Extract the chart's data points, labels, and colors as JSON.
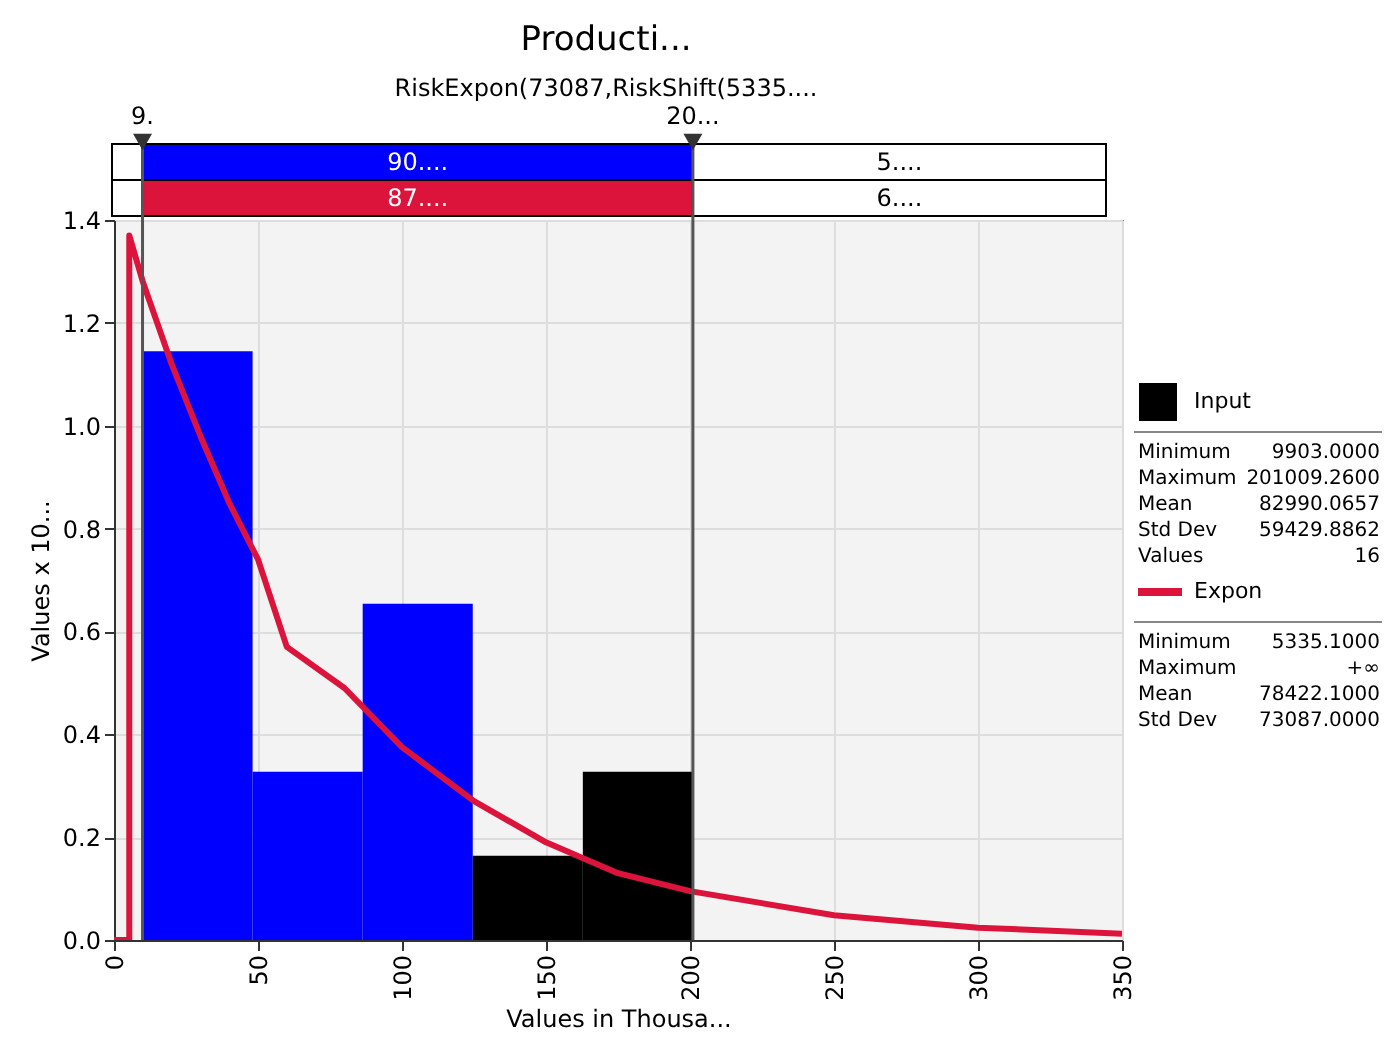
{
  "chart_data": {
    "type": "histogram",
    "title": "Producti...",
    "subtitle": "RiskExpon(73087,RiskShift(5335....",
    "xlabel": "Values in Thousa...",
    "ylabel": "Values x 10...",
    "bins": [
      9.903,
      48.124,
      86.345,
      124.567,
      162.788,
      201.009
    ],
    "series": [
      {
        "name": "Input",
        "type": "histogram",
        "color": "#000000",
        "colors": [
          "#0000ff",
          "#0000ff",
          "#0000ff",
          "#000000",
          "#000000"
        ],
        "values": [
          1.145,
          0.327,
          0.654,
          0.164,
          0.327
        ]
      },
      {
        "name": "Expon",
        "type": "line",
        "color": "#dc143c",
        "x": [
          0,
          5.3,
          5.3,
          10,
          20,
          30,
          40,
          50,
          60,
          80,
          100,
          125,
          150,
          175,
          200,
          250,
          300,
          350
        ],
        "values": [
          0,
          0,
          1.37,
          1.28,
          1.12,
          0.98,
          0.85,
          0.74,
          0.57,
          0.49,
          0.375,
          0.27,
          0.19,
          0.13,
          0.095,
          0.048,
          0.024,
          0.012
        ]
      }
    ],
    "xlim": [
      0,
      350
    ],
    "xticks": [
      0,
      50,
      100,
      150,
      200,
      250,
      300,
      350
    ],
    "ylim": [
      0,
      1.4
    ],
    "yticks": [
      {
        "value": 0,
        "label": "0.0"
      },
      {
        "value": 0.2,
        "label": "0.2"
      },
      {
        "value": 0.4,
        "label": "0.4"
      },
      {
        "value": 0.6,
        "label": "0.6"
      },
      {
        "value": 0.8,
        "label": "0.8"
      },
      {
        "value": 1,
        "label": "1.0"
      },
      {
        "value": 1.2,
        "label": "1.2"
      },
      {
        "value": 1.4,
        "label": "1.4"
      }
    ],
    "grid": true,
    "legend": "right",
    "ref_lines": [
      {
        "axis": "x",
        "value": 9.903,
        "color": "#555555"
      },
      {
        "axis": "x",
        "value": 201.009,
        "color": "#555555"
      }
    ],
    "annotations": [
      "90....",
      "5....",
      "87....",
      "6....",
      "9.",
      "20...",
      "Minimum",
      "9903.0000",
      "Maximum",
      "201009.2600",
      "Mean",
      "82990.0657",
      "Std Dev",
      "59429.8862",
      "Values",
      "16",
      "Minimum",
      "5335.1000",
      "Maximum",
      "+∞",
      "Mean",
      "78422.1000",
      "Std Dev",
      "73087.0000"
    ]
  }
}
